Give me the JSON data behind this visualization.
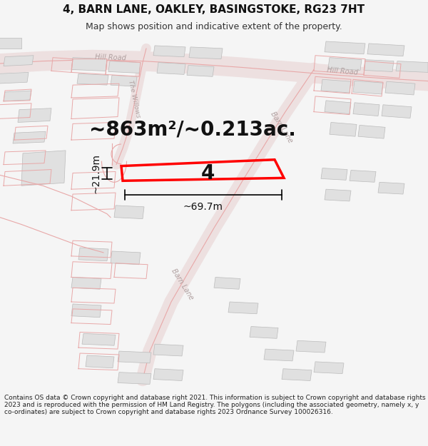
{
  "title": "4, BARN LANE, OAKLEY, BASINGSTOKE, RG23 7HT",
  "subtitle": "Map shows position and indicative extent of the property.",
  "area_text": "~863m²/~0.213ac.",
  "label_number": "4",
  "dim_h": "~69.7m",
  "dim_v": "~21.9m",
  "footer": "Contains OS data © Crown copyright and database right 2021. This information is subject to Crown copyright and database rights 2023 and is reproduced with the permission of HM Land Registry. The polygons (including the associated geometry, namely x, y co-ordinates) are subject to Crown copyright and database rights 2023 Ordnance Survey 100026316.",
  "bg_color": "#f5f5f5",
  "map_bg": "#ffffff",
  "road_color": "#e8a8a8",
  "road_fill": "#f5e8e8",
  "building_fill": "#e0e0e0",
  "building_edge": "#bbbbbb",
  "plot_color": "#ff0000",
  "road_label_color": "#b0a0a0",
  "title_fontsize": 11,
  "subtitle_fontsize": 9,
  "area_fontsize": 20,
  "label_fontsize": 20,
  "dim_fontsize": 10,
  "road_label_fontsize": 7,
  "footer_fontsize": 6.5
}
